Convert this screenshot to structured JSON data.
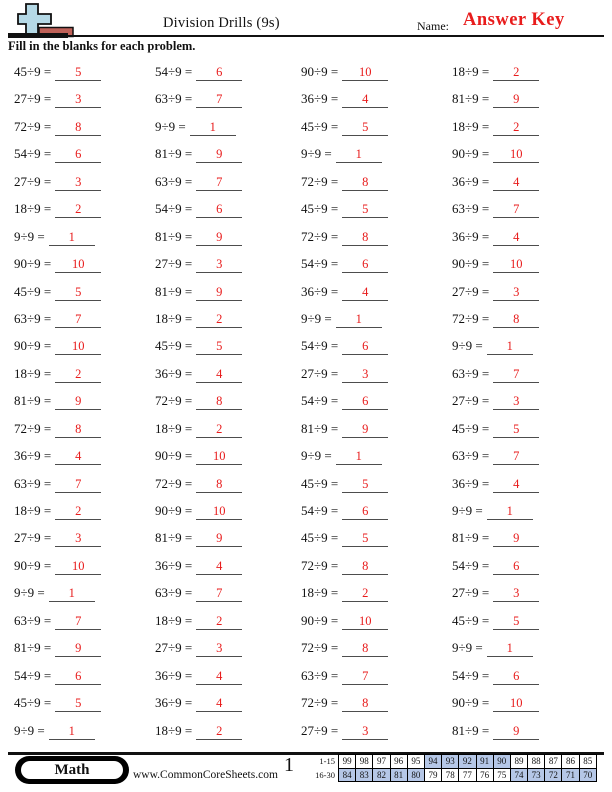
{
  "theme": {
    "answer_red": "#e81c1c",
    "score_shade": "#b5c7e7",
    "logo_blue": "#b5d9e6",
    "logo_brown": "#bf6158"
  },
  "header": {
    "title": "Division Drills (9s)",
    "name_label": "Name:",
    "answer_key": "Answer Key",
    "instructions": "Fill in the blanks for each problem."
  },
  "problems": {
    "columns": [
      [
        {
          "q": "45÷9 =",
          "a": "5"
        },
        {
          "q": "27÷9 =",
          "a": "3"
        },
        {
          "q": "72÷9 =",
          "a": "8"
        },
        {
          "q": "54÷9 =",
          "a": "6"
        },
        {
          "q": "27÷9 =",
          "a": "3"
        },
        {
          "q": "18÷9 =",
          "a": "2"
        },
        {
          "q": "9÷9 =",
          "a": "1"
        },
        {
          "q": "90÷9 =",
          "a": "10"
        },
        {
          "q": "45÷9 =",
          "a": "5"
        },
        {
          "q": "63÷9 =",
          "a": "7"
        },
        {
          "q": "90÷9 =",
          "a": "10"
        },
        {
          "q": "18÷9 =",
          "a": "2"
        },
        {
          "q": "81÷9 =",
          "a": "9"
        },
        {
          "q": "72÷9 =",
          "a": "8"
        },
        {
          "q": "36÷9 =",
          "a": "4"
        },
        {
          "q": "63÷9 =",
          "a": "7"
        },
        {
          "q": "18÷9 =",
          "a": "2"
        },
        {
          "q": "27÷9 =",
          "a": "3"
        },
        {
          "q": "90÷9 =",
          "a": "10"
        },
        {
          "q": "9÷9 =",
          "a": "1"
        },
        {
          "q": "63÷9 =",
          "a": "7"
        },
        {
          "q": "81÷9 =",
          "a": "9"
        },
        {
          "q": "54÷9 =",
          "a": "6"
        },
        {
          "q": "45÷9 =",
          "a": "5"
        },
        {
          "q": "9÷9 =",
          "a": "1"
        }
      ],
      [
        {
          "q": "54÷9 =",
          "a": "6"
        },
        {
          "q": "63÷9 =",
          "a": "7"
        },
        {
          "q": "9÷9 =",
          "a": "1"
        },
        {
          "q": "81÷9 =",
          "a": "9"
        },
        {
          "q": "63÷9 =",
          "a": "7"
        },
        {
          "q": "54÷9 =",
          "a": "6"
        },
        {
          "q": "81÷9 =",
          "a": "9"
        },
        {
          "q": "27÷9 =",
          "a": "3"
        },
        {
          "q": "81÷9 =",
          "a": "9"
        },
        {
          "q": "18÷9 =",
          "a": "2"
        },
        {
          "q": "45÷9 =",
          "a": "5"
        },
        {
          "q": "36÷9 =",
          "a": "4"
        },
        {
          "q": "72÷9 =",
          "a": "8"
        },
        {
          "q": "18÷9 =",
          "a": "2"
        },
        {
          "q": "90÷9 =",
          "a": "10"
        },
        {
          "q": "72÷9 =",
          "a": "8"
        },
        {
          "q": "90÷9 =",
          "a": "10"
        },
        {
          "q": "81÷9 =",
          "a": "9"
        },
        {
          "q": "36÷9 =",
          "a": "4"
        },
        {
          "q": "63÷9 =",
          "a": "7"
        },
        {
          "q": "18÷9 =",
          "a": "2"
        },
        {
          "q": "27÷9 =",
          "a": "3"
        },
        {
          "q": "36÷9 =",
          "a": "4"
        },
        {
          "q": "36÷9 =",
          "a": "4"
        },
        {
          "q": "18÷9 =",
          "a": "2"
        }
      ],
      [
        {
          "q": "90÷9 =",
          "a": "10"
        },
        {
          "q": "36÷9 =",
          "a": "4"
        },
        {
          "q": "45÷9 =",
          "a": "5"
        },
        {
          "q": "9÷9 =",
          "a": "1"
        },
        {
          "q": "72÷9 =",
          "a": "8"
        },
        {
          "q": "45÷9 =",
          "a": "5"
        },
        {
          "q": "72÷9 =",
          "a": "8"
        },
        {
          "q": "54÷9 =",
          "a": "6"
        },
        {
          "q": "36÷9 =",
          "a": "4"
        },
        {
          "q": "9÷9 =",
          "a": "1"
        },
        {
          "q": "54÷9 =",
          "a": "6"
        },
        {
          "q": "27÷9 =",
          "a": "3"
        },
        {
          "q": "54÷9 =",
          "a": "6"
        },
        {
          "q": "81÷9 =",
          "a": "9"
        },
        {
          "q": "9÷9 =",
          "a": "1"
        },
        {
          "q": "45÷9 =",
          "a": "5"
        },
        {
          "q": "54÷9 =",
          "a": "6"
        },
        {
          "q": "45÷9 =",
          "a": "5"
        },
        {
          "q": "72÷9 =",
          "a": "8"
        },
        {
          "q": "18÷9 =",
          "a": "2"
        },
        {
          "q": "90÷9 =",
          "a": "10"
        },
        {
          "q": "72÷9 =",
          "a": "8"
        },
        {
          "q": "63÷9 =",
          "a": "7"
        },
        {
          "q": "72÷9 =",
          "a": "8"
        },
        {
          "q": "27÷9 =",
          "a": "3"
        }
      ],
      [
        {
          "q": "18÷9 =",
          "a": "2"
        },
        {
          "q": "81÷9 =",
          "a": "9"
        },
        {
          "q": "18÷9 =",
          "a": "2"
        },
        {
          "q": "90÷9 =",
          "a": "10"
        },
        {
          "q": "36÷9 =",
          "a": "4"
        },
        {
          "q": "63÷9 =",
          "a": "7"
        },
        {
          "q": "36÷9 =",
          "a": "4"
        },
        {
          "q": "90÷9 =",
          "a": "10"
        },
        {
          "q": "27÷9 =",
          "a": "3"
        },
        {
          "q": "72÷9 =",
          "a": "8"
        },
        {
          "q": "9÷9 =",
          "a": "1"
        },
        {
          "q": "63÷9 =",
          "a": "7"
        },
        {
          "q": "27÷9 =",
          "a": "3"
        },
        {
          "q": "45÷9 =",
          "a": "5"
        },
        {
          "q": "63÷9 =",
          "a": "7"
        },
        {
          "q": "36÷9 =",
          "a": "4"
        },
        {
          "q": "9÷9 =",
          "a": "1"
        },
        {
          "q": "81÷9 =",
          "a": "9"
        },
        {
          "q": "54÷9 =",
          "a": "6"
        },
        {
          "q": "27÷9 =",
          "a": "3"
        },
        {
          "q": "45÷9 =",
          "a": "5"
        },
        {
          "q": "9÷9 =",
          "a": "1"
        },
        {
          "q": "54÷9 =",
          "a": "6"
        },
        {
          "q": "90÷9 =",
          "a": "10"
        },
        {
          "q": "81÷9 =",
          "a": "9"
        }
      ]
    ]
  },
  "footer": {
    "subject": "Math",
    "website": "www.CommonCoreSheets.com",
    "page_number": "1",
    "score_table": {
      "rows": [
        {
          "label": "1-15",
          "values": [
            "99",
            "98",
            "97",
            "96",
            "95",
            "94",
            "93",
            "92",
            "91",
            "90",
            "89",
            "88",
            "87",
            "86",
            "85"
          ],
          "shaded": [
            false,
            false,
            false,
            false,
            false,
            true,
            true,
            true,
            true,
            true,
            false,
            false,
            false,
            false,
            false
          ]
        },
        {
          "label": "16-30",
          "values": [
            "84",
            "83",
            "82",
            "81",
            "80",
            "79",
            "78",
            "77",
            "76",
            "75",
            "74",
            "73",
            "72",
            "71",
            "70"
          ],
          "shaded": [
            true,
            true,
            true,
            true,
            true,
            false,
            false,
            false,
            false,
            false,
            true,
            true,
            true,
            true,
            true
          ]
        }
      ]
    }
  }
}
